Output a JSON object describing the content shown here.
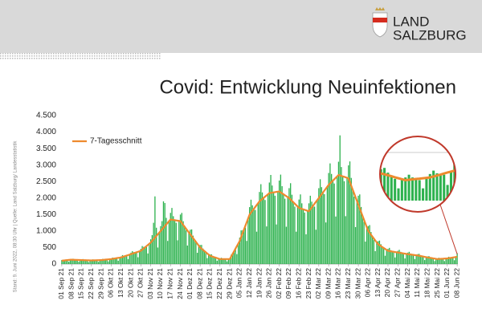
{
  "header": {
    "logo_line1": "LAND",
    "logo_line2": "SALZBURG"
  },
  "footnote": "Stand: 9. Juni 2022, 08:30 Uhr | Quelle: Land Salzburg/ Landesstatistik",
  "chart_data": {
    "type": "bar",
    "title": "Covid: Entwicklung Neuinfektionen",
    "legend": "upper left",
    "grid": false,
    "ylim": [
      0,
      4500
    ],
    "yticks": [
      0,
      {
        "value": 500,
        "label": "500"
      },
      {
        "value": 1000,
        "label": "1.000"
      },
      {
        "value": 1500,
        "label": "1.500"
      },
      {
        "value": 2000,
        "label": "2.000"
      },
      {
        "value": 2500,
        "label": "2.500"
      },
      {
        "value": 3000,
        "label": "3.000"
      },
      {
        "value": 3500,
        "label": "3.500"
      },
      {
        "value": 4000,
        "label": "4.000"
      },
      {
        "value": 4500,
        "label": "4.500"
      }
    ],
    "categories": [
      "01 Sep 21",
      null,
      null,
      null,
      null,
      null,
      null,
      "08 Sep 21",
      null,
      null,
      null,
      null,
      null,
      null,
      "15 Sep 21",
      null,
      null,
      null,
      null,
      null,
      null,
      "22 Sep 21",
      null,
      null,
      null,
      null,
      null,
      null,
      "29 Sep 21",
      null,
      null,
      null,
      null,
      null,
      null,
      "06 Okt 21",
      null,
      null,
      null,
      null,
      null,
      null,
      "13 Okt 21",
      null,
      null,
      null,
      null,
      null,
      null,
      "20 Okt 21",
      null,
      null,
      null,
      null,
      null,
      null,
      "27 Okt 21",
      null,
      null,
      null,
      null,
      null,
      null,
      "03 Nov 21",
      null,
      null,
      null,
      null,
      null,
      null,
      "10 Nov 21",
      null,
      null,
      null,
      null,
      null,
      null,
      "17 Nov 21",
      null,
      null,
      null,
      null,
      null,
      null,
      "24 Nov 21",
      null,
      null,
      null,
      null,
      null,
      null,
      "01 Dez 21",
      null,
      null,
      null,
      null,
      null,
      null,
      "08 Dez 21",
      null,
      null,
      null,
      null,
      null,
      null,
      "15 Dez 21",
      null,
      null,
      null,
      null,
      null,
      null,
      "22 Dez 21",
      null,
      null,
      null,
      null,
      null,
      null,
      "29 Dez 21",
      null,
      null,
      null,
      null,
      null,
      null,
      "05 Jan 22",
      null,
      null,
      null,
      null,
      null,
      null,
      "12 Jan 22",
      null,
      null,
      null,
      null,
      null,
      null,
      "19 Jan 22",
      null,
      null,
      null,
      null,
      null,
      null,
      "26 Jan 22",
      null,
      null,
      null,
      null,
      null,
      null,
      "02 Feb 22",
      null,
      null,
      null,
      null,
      null,
      null,
      "09 Feb 22",
      null,
      null,
      null,
      null,
      null,
      null,
      "16 Feb 22",
      null,
      null,
      null,
      null,
      null,
      null,
      "23 Feb 22",
      null,
      null,
      null,
      null,
      null,
      null,
      "02 Mar 22",
      null,
      null,
      null,
      null,
      null,
      null,
      "09 Mar 22",
      null,
      null,
      null,
      null,
      null,
      null,
      "16 Mar 22",
      null,
      null,
      null,
      null,
      null,
      null,
      "23 Mar 22",
      null,
      null,
      null,
      null,
      null,
      null,
      "30 Mar 22",
      null,
      null,
      null,
      null,
      null,
      null,
      "06 Apr 22",
      null,
      null,
      null,
      null,
      null,
      null,
      "13 Apr 22",
      null,
      null,
      null,
      null,
      null,
      null,
      "20 Apr 22",
      null,
      null,
      null,
      null,
      null,
      null,
      "27 Apr 22",
      null,
      null,
      null,
      null,
      null,
      null,
      "04 Mai 22",
      null,
      null,
      null,
      null,
      null,
      null,
      "11 Mai 22",
      null,
      null,
      null,
      null,
      null,
      null,
      "18 Mai 22",
      null,
      null,
      null,
      null,
      null,
      null,
      "25 Mai 22",
      null,
      null,
      null,
      null,
      null,
      null,
      "01 Jun 22",
      null,
      null,
      null,
      null,
      null,
      null,
      "08 Jun 22"
    ],
    "series": [
      {
        "type": "bar",
        "color": "#2eb24f",
        "values": [
          120,
          130,
          120,
          120,
          110,
          70,
          130,
          150,
          160,
          140,
          125,
          120,
          70,
          120,
          140,
          150,
          130,
          115,
          110,
          60,
          110,
          130,
          140,
          120,
          115,
          110,
          65,
          120,
          140,
          155,
          140,
          135,
          130,
          80,
          145,
          170,
          195,
          180,
          170,
          170,
          100,
          195,
          230,
          270,
          250,
          245,
          245,
          150,
          285,
          345,
          390,
          360,
          345,
          340,
          205,
          385,
          460,
          545,
          520,
          505,
          515,
          320,
          615,
          750,
          875,
          1250,
          2050,
          1100,
          500,
          950,
          1150,
          1300,
          1900,
          1850,
          1400,
          700,
          1300,
          1550,
          1700,
          1450,
          1330,
          1250,
          720,
          1300,
          1500,
          1550,
          1300,
          1130,
          1020,
          560,
          960,
          1040,
          1050,
          860,
          730,
          640,
          340,
          560,
          575,
          580,
          470,
          390,
          340,
          180,
          290,
          290,
          295,
          245,
          205,
          185,
          100,
          165,
          170,
          190,
          165,
          150,
          140,
          80,
          150,
          170,
          285,
          340,
          385,
          440,
          300,
          620,
          800,
          1020,
          1020,
          1040,
          1100,
          700,
          1390,
          1725,
          1950,
          1780,
          1670,
          1640,
          980,
          1840,
          2185,
          2420,
          2170,
          2010,
          1940,
          1140,
          2110,
          2470,
          2700,
          2380,
          2170,
          2070,
          1200,
          2190,
          2530,
          2710,
          2360,
          2110,
          1980,
          1130,
          2030,
          2300,
          2450,
          2100,
          1870,
          1740,
          980,
          1740,
          1955,
          2110,
          1840,
          1660,
          1560,
          900,
          1610,
          1840,
          2070,
          1890,
          1770,
          1740,
          1040,
          1940,
          2300,
          2570,
          2330,
          2170,
          2120,
          1260,
          2340,
          2760,
          3050,
          2730,
          2530,
          2440,
          1440,
          2660,
          3100,
          3900,
          2940,
          2660,
          2510,
          1450,
          2610,
          2990,
          3110,
          2610,
          2260,
          2040,
          1120,
          1910,
          2070,
          2110,
          1730,
          1460,
          1280,
          680,
          1110,
          1150,
          1180,
          970,
          830,
          730,
          390,
          660,
          690,
          710,
          600,
          510,
          460,
          250,
          430,
          460,
          490,
          420,
          380,
          350,
          200,
          360,
          400,
          430,
          370,
          330,
          300,
          170,
          310,
          345,
          370,
          320,
          280,
          260,
          150,
          270,
          300,
          310,
          270,
          235,
          215,
          120,
          210,
          230,
          240,
          205,
          180,
          160,
          90,
          160,
          170,
          190,
          170,
          160,
          150,
          90,
          170,
          195,
          220,
          200,
          190,
          190,
          115,
          215,
          330
        ]
      },
      {
        "type": "line",
        "name": "7-Tagesschnitt",
        "color": "#ee8a2e",
        "values": [
          100,
          105,
          110,
          115,
          120,
          125,
          130,
          130,
          128,
          127,
          125,
          124,
          122,
          121,
          120,
          119,
          117,
          116,
          114,
          113,
          111,
          110,
          111,
          113,
          114,
          116,
          117,
          119,
          120,
          124,
          129,
          133,
          137,
          141,
          146,
          150,
          157,
          164,
          171,
          179,
          186,
          193,
          200,
          214,
          229,
          243,
          257,
          271,
          286,
          300,
          314,
          329,
          343,
          357,
          371,
          386,
          400,
          436,
          471,
          507,
          543,
          579,
          614,
          650,
          700,
          750,
          800,
          850,
          900,
          950,
          1000,
          1050,
          1100,
          1150,
          1200,
          1250,
          1300,
          1350,
          1343,
          1336,
          1329,
          1321,
          1314,
          1307,
          1300,
          1243,
          1186,
          1129,
          1071,
          1014,
          957,
          900,
          843,
          786,
          729,
          671,
          614,
          557,
          500,
          464,
          429,
          393,
          357,
          321,
          286,
          250,
          236,
          221,
          207,
          193,
          179,
          164,
          150,
          150,
          150,
          150,
          150,
          150,
          150,
          150,
          229,
          307,
          386,
          464,
          543,
          621,
          700,
          814,
          929,
          1043,
          1157,
          1271,
          1386,
          1500,
          1557,
          1614,
          1671,
          1729,
          1786,
          1843,
          1900,
          1936,
          1971,
          2007,
          2043,
          2079,
          2114,
          2150,
          2157,
          2164,
          2171,
          2179,
          2186,
          2193,
          2200,
          2171,
          2143,
          2114,
          2086,
          2057,
          2029,
          2000,
          1957,
          1914,
          1871,
          1829,
          1786,
          1743,
          1700,
          1686,
          1671,
          1657,
          1643,
          1629,
          1614,
          1600,
          1657,
          1714,
          1771,
          1829,
          1886,
          1943,
          2000,
          2057,
          2114,
          2171,
          2229,
          2286,
          2343,
          2400,
          2443,
          2486,
          2529,
          2571,
          2614,
          2657,
          2700,
          2686,
          2671,
          2657,
          2643,
          2629,
          2614,
          2600,
          2486,
          2371,
          2257,
          2143,
          2029,
          1914,
          1800,
          1686,
          1571,
          1457,
          1343,
          1229,
          1114,
          1000,
          943,
          886,
          829,
          771,
          714,
          657,
          600,
          571,
          543,
          514,
          486,
          457,
          429,
          400,
          393,
          386,
          379,
          371,
          364,
          357,
          350,
          343,
          336,
          329,
          321,
          314,
          307,
          300,
          294,
          289,
          283,
          277,
          271,
          266,
          260,
          251,
          243,
          234,
          226,
          217,
          209,
          200,
          193,
          186,
          179,
          171,
          164,
          157,
          150,
          153,
          156,
          159,
          161,
          164,
          167,
          170,
          177,
          184,
          191,
          199,
          206,
          213,
          220
        ]
      }
    ]
  }
}
